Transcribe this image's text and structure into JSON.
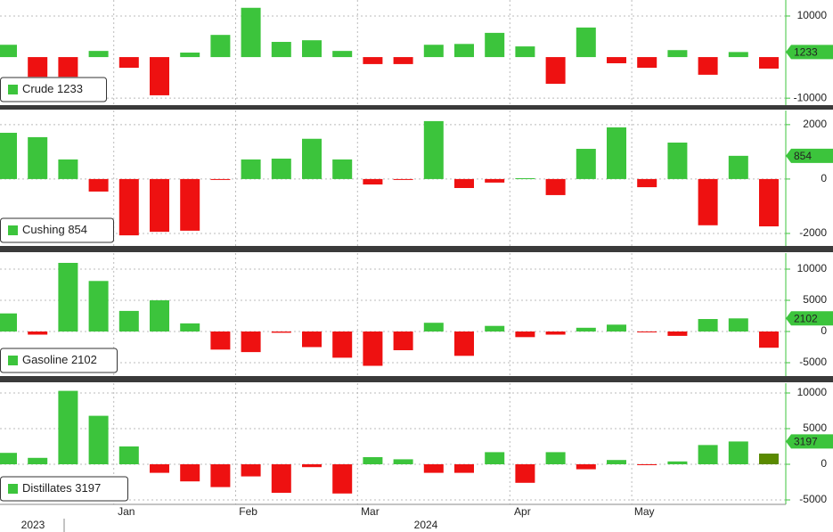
{
  "chart_data": [
    {
      "type": "bar",
      "name": "Crude",
      "last_value": 1233,
      "pos_color": "#3cc43c",
      "neg_color": "#ee1111",
      "ylim": [
        -11700,
        13900
      ],
      "yticks": [
        -10000,
        10000
      ],
      "grid": true,
      "values": [
        3000,
        -4800,
        -4800,
        1500,
        -2600,
        -9300,
        1100,
        5400,
        12000,
        3700,
        4100,
        1500,
        -1700,
        -1700,
        3000,
        3200,
        5900,
        2600,
        -6500,
        7200,
        -1500,
        -2600,
        1700,
        -4300,
        1233,
        -2800
      ]
    },
    {
      "type": "bar",
      "name": "Cushing",
      "last_value": 854,
      "pos_color": "#3cc43c",
      "neg_color": "#ee1111",
      "ylim": [
        -2460,
        2520
      ],
      "yticks": [
        -2000,
        0,
        2000
      ],
      "grid": true,
      "values": [
        1700,
        1540,
        720,
        -460,
        -2070,
        -1940,
        -1900,
        -30,
        720,
        750,
        1480,
        720,
        -200,
        -20,
        2130,
        -330,
        -130,
        30,
        -590,
        1110,
        1900,
        -300,
        1340,
        -1700,
        854,
        -1740
      ]
    },
    {
      "type": "bar",
      "name": "Gasoline",
      "last_value": 2102,
      "pos_color": "#3cc43c",
      "neg_color": "#ee1111",
      "ylim": [
        -7140,
        12570
      ],
      "yticks": [
        -5000,
        0,
        5000,
        10000
      ],
      "grid": true,
      "values": [
        2900,
        -500,
        11000,
        8100,
        3300,
        5000,
        1300,
        -2900,
        -3300,
        -200,
        -2500,
        -4200,
        -5500,
        -3000,
        1400,
        -3900,
        900,
        -900,
        -500,
        600,
        1100,
        -100,
        -700,
        2000,
        2102,
        -2600
      ]
    },
    {
      "type": "bar",
      "name": "Distillates",
      "last_value": 3197,
      "pos_color": "#3cc43c",
      "neg_color": "#ee1111",
      "last_bar_color": "#5a8a00",
      "ylim": [
        -5625,
        11375
      ],
      "yticks": [
        -5000,
        0,
        5000,
        10000
      ],
      "grid": true,
      "values": [
        1600,
        900,
        10300,
        6800,
        2500,
        -1200,
        -2400,
        -3200,
        -1700,
        -4000,
        -400,
        -4100,
        1000,
        700,
        -1200,
        -1200,
        1700,
        -2600,
        1700,
        -700,
        600,
        -100,
        400,
        2700,
        3197,
        1500
      ]
    }
  ],
  "categories": [
    null,
    null,
    null,
    null,
    "Jan",
    null,
    null,
    null,
    "Feb",
    null,
    null,
    null,
    "Mar",
    null,
    null,
    null,
    null,
    "Apr",
    null,
    null,
    null,
    "May",
    null,
    null,
    null,
    null
  ],
  "years": [
    "2023",
    "2024"
  ]
}
